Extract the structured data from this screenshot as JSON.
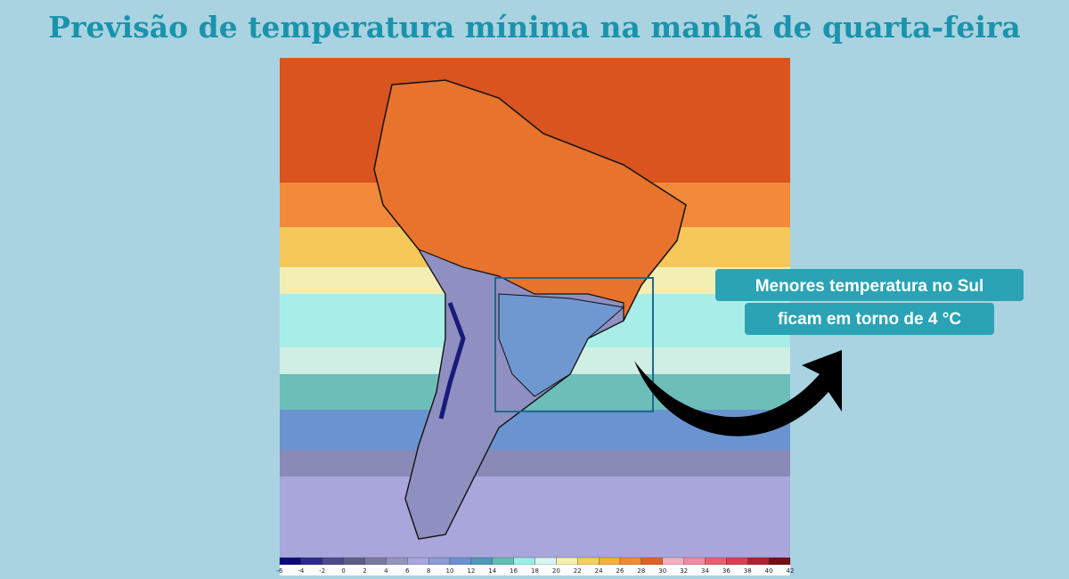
{
  "title": "Previsão de temperatura mínima na manhã de quarta-feira",
  "callout": {
    "lines": [
      "Menores temperatura no Sul",
      "ficam em torno de 4 °C"
    ]
  },
  "colorbar": {
    "ticks": [
      -6,
      -4,
      -2,
      0,
      2,
      4,
      6,
      8,
      10,
      12,
      14,
      16,
      18,
      20,
      22,
      24,
      26,
      28,
      30,
      32,
      34,
      36,
      38,
      40,
      42
    ],
    "colors": [
      "#0a0a7a",
      "#2b2b8f",
      "#4b4b8c",
      "#5e5e86",
      "#7a7a9c",
      "#9494bf",
      "#a9a6dc",
      "#8c9ad8",
      "#6a92d2",
      "#4f9ab9",
      "#5fbfb0",
      "#9aeee6",
      "#d6f5ee",
      "#f5f0b0",
      "#f5d060",
      "#f5b040",
      "#f08a3a",
      "#e0602a",
      "#f5b0c0",
      "#f08aa0",
      "#e86070",
      "#d84050",
      "#b02030",
      "#701010"
    ]
  }
}
